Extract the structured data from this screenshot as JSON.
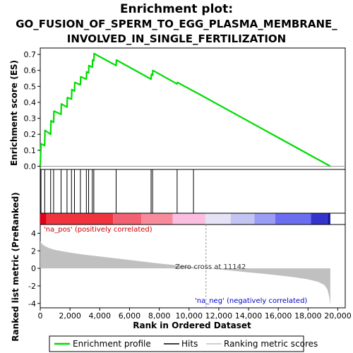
{
  "chart_data": {
    "type": "line",
    "title_lines": [
      "Enrichment plot:",
      "GO_FUSION_OF_SPERM_TO_EGG_PLASMA_MEMBRANE_",
      "INVOLVED_IN_SINGLE_FERTILIZATION"
    ],
    "xlabel": "Rank in Ordered Dataset",
    "ylabel_top": "Enrichment score (ES)",
    "ylabel_bottom": "Ranked list metric (PreRanked)",
    "xlim": [
      0,
      20500
    ],
    "x_ticks": [
      0,
      2000,
      4000,
      6000,
      8000,
      10000,
      12000,
      14000,
      16000,
      18000,
      20000
    ],
    "x_tick_labels": [
      "0",
      "2,000",
      "4,000",
      "6,000",
      "8,000",
      "10,000",
      "12,000",
      "14,000",
      "16,000",
      "18,000",
      "20,000"
    ],
    "es_ylim": [
      -0.02,
      0.74
    ],
    "es_ticks": [
      0.0,
      0.1,
      0.2,
      0.3,
      0.4,
      0.5,
      0.6,
      0.7
    ],
    "es_tick_labels": [
      "0.0",
      "0.1",
      "0.2",
      "0.3",
      "0.4",
      "0.5",
      "0.6",
      "0.7"
    ],
    "metric_ylim": [
      -4.5,
      5
    ],
    "metric_ticks": [
      -4,
      -2,
      0,
      2,
      4
    ],
    "metric_tick_labels": [
      "-4",
      "-2",
      "0",
      "2",
      "4"
    ],
    "zero_cross": 11142,
    "zero_cross_label": "Zero cross at 11142",
    "pos_label": "'na_pos' (positively correlated)",
    "neg_label": "'na_neg' (negatively correlated)",
    "total_ranks": 19500,
    "hits": [
      50,
      300,
      700,
      900,
      1400,
      1800,
      2100,
      2300,
      2700,
      3100,
      3250,
      3500,
      3600,
      5100,
      7450,
      7550,
      9200,
      10300
    ],
    "es_points": [
      [
        0,
        0.0
      ],
      [
        50,
        0.14
      ],
      [
        300,
        0.13
      ],
      [
        320,
        0.225
      ],
      [
        700,
        0.2
      ],
      [
        720,
        0.285
      ],
      [
        900,
        0.275
      ],
      [
        920,
        0.345
      ],
      [
        1400,
        0.325
      ],
      [
        1420,
        0.39
      ],
      [
        1800,
        0.37
      ],
      [
        1820,
        0.43
      ],
      [
        2100,
        0.42
      ],
      [
        2120,
        0.48
      ],
      [
        2300,
        0.47
      ],
      [
        2320,
        0.525
      ],
      [
        2700,
        0.51
      ],
      [
        2720,
        0.56
      ],
      [
        3100,
        0.545
      ],
      [
        3120,
        0.59
      ],
      [
        3250,
        0.585
      ],
      [
        3270,
        0.63
      ],
      [
        3500,
        0.62
      ],
      [
        3520,
        0.665
      ],
      [
        3600,
        0.66
      ],
      [
        3620,
        0.705
      ],
      [
        5100,
        0.63
      ],
      [
        5120,
        0.665
      ],
      [
        7450,
        0.545
      ],
      [
        7470,
        0.575
      ],
      [
        7550,
        0.57
      ],
      [
        7570,
        0.6
      ],
      [
        9200,
        0.515
      ],
      [
        9220,
        0.525
      ],
      [
        10300,
        0.47
      ],
      [
        10320,
        0.47
      ],
      [
        19500,
        0.0
      ]
    ],
    "metric_points": [
      [
        0,
        3.1
      ],
      [
        100,
        2.8
      ],
      [
        300,
        2.55
      ],
      [
        600,
        2.3
      ],
      [
        1000,
        2.1
      ],
      [
        1500,
        1.95
      ],
      [
        2000,
        1.8
      ],
      [
        3000,
        1.55
      ],
      [
        4000,
        1.35
      ],
      [
        5000,
        1.15
      ],
      [
        6000,
        0.95
      ],
      [
        7000,
        0.75
      ],
      [
        8000,
        0.55
      ],
      [
        9000,
        0.38
      ],
      [
        10000,
        0.2
      ],
      [
        11142,
        0.0
      ],
      [
        12000,
        -0.12
      ],
      [
        13000,
        -0.28
      ],
      [
        14000,
        -0.45
      ],
      [
        15000,
        -0.62
      ],
      [
        16000,
        -0.8
      ],
      [
        17000,
        -1.0
      ],
      [
        18000,
        -1.25
      ],
      [
        18700,
        -1.55
      ],
      [
        19100,
        -1.9
      ],
      [
        19300,
        -2.4
      ],
      [
        19420,
        -3.2
      ],
      [
        19500,
        -4.2
      ]
    ],
    "heat_bands": [
      {
        "from": 0,
        "to": 400,
        "color": "#e0001a"
      },
      {
        "from": 400,
        "to": 4900,
        "color": "#f0343e"
      },
      {
        "from": 4900,
        "to": 6800,
        "color": "#f36272"
      },
      {
        "from": 6800,
        "to": 8900,
        "color": "#f78b9c"
      },
      {
        "from": 8900,
        "to": 11100,
        "color": "#fbbde0"
      },
      {
        "from": 11100,
        "to": 12800,
        "color": "#e6e2f6"
      },
      {
        "from": 12800,
        "to": 14400,
        "color": "#c4c4f3"
      },
      {
        "from": 14400,
        "to": 15800,
        "color": "#9b9df5"
      },
      {
        "from": 15800,
        "to": 18200,
        "color": "#6c6ef0"
      },
      {
        "from": 18200,
        "to": 19300,
        "color": "#3434cc"
      },
      {
        "from": 19300,
        "to": 19500,
        "color": "#1a1aa8"
      }
    ],
    "legend": [
      "Enrichment profile",
      "Hits",
      "Ranking metric scores"
    ],
    "colors": {
      "es_line": "#00dd00",
      "hit": "#000000",
      "metric_fill": "#c0c0c0",
      "pos_text": "#cc0000",
      "neg_text": "#0000cc"
    }
  }
}
